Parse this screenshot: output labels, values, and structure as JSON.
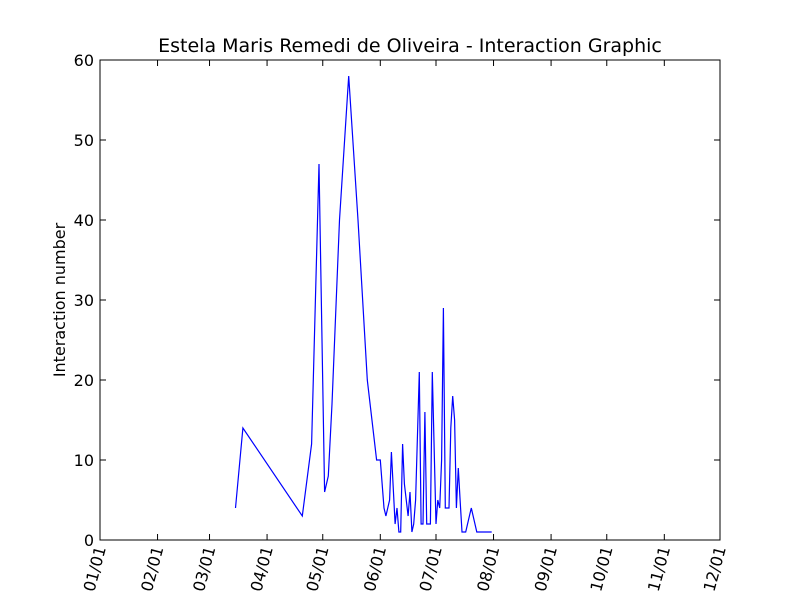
{
  "chart_data": {
    "type": "line",
    "title": "Estela Maris Remedi de Oliveira - Interaction Graphic",
    "xlabel": "",
    "ylabel": "Interaction number",
    "ylim": [
      0,
      60
    ],
    "xlim": [
      "2015-01-01",
      "2015-12-01"
    ],
    "y_ticks": [
      "0",
      "10",
      "20",
      "30",
      "40",
      "50",
      "60"
    ],
    "x_ticks": [
      {
        "label": "01/01",
        "date": "2015-01-01"
      },
      {
        "label": "02/01",
        "date": "2015-02-01"
      },
      {
        "label": "03/01",
        "date": "2015-03-01"
      },
      {
        "label": "04/01",
        "date": "2015-04-01"
      },
      {
        "label": "05/01",
        "date": "2015-05-01"
      },
      {
        "label": "06/01",
        "date": "2015-06-01"
      },
      {
        "label": "07/01",
        "date": "2015-07-01"
      },
      {
        "label": "08/01",
        "date": "2015-08-01"
      },
      {
        "label": "09/01",
        "date": "2015-09-01"
      },
      {
        "label": "10/01",
        "date": "2015-10-01"
      },
      {
        "label": "11/01",
        "date": "2015-11-01"
      },
      {
        "label": "12/01",
        "date": "2015-12-01"
      }
    ],
    "grid": false,
    "line_color": "#0000ff",
    "series": [
      {
        "x": [
          "2015-03-15",
          "2015-03-19",
          "2015-04-20",
          "2015-04-25",
          "2015-04-29",
          "2015-05-02",
          "2015-05-04",
          "2015-05-06",
          "2015-05-10",
          "2015-05-15",
          "2015-05-20",
          "2015-05-25",
          "2015-05-30",
          "2015-06-01",
          "2015-06-03",
          "2015-06-04",
          "2015-06-06",
          "2015-06-07",
          "2015-06-09",
          "2015-06-10",
          "2015-06-11",
          "2015-06-12",
          "2015-06-13",
          "2015-06-14",
          "2015-06-16",
          "2015-06-17",
          "2015-06-18",
          "2015-06-19",
          "2015-06-20",
          "2015-06-22",
          "2015-06-23",
          "2015-06-24",
          "2015-06-25",
          "2015-06-26",
          "2015-06-28",
          "2015-06-29",
          "2015-07-01",
          "2015-07-02",
          "2015-07-03",
          "2015-07-04",
          "2015-07-05",
          "2015-07-06",
          "2015-07-07",
          "2015-07-08",
          "2015-07-09",
          "2015-07-10",
          "2015-07-11",
          "2015-07-12",
          "2015-07-13",
          "2015-07-14",
          "2015-07-15",
          "2015-07-17",
          "2015-07-19",
          "2015-07-20",
          "2015-07-23",
          "2015-07-28",
          "2015-07-30",
          "2015-07-31"
        ],
        "values": [
          4,
          14,
          3,
          12,
          47,
          6,
          8,
          17,
          40,
          58,
          40,
          20,
          10,
          10,
          4,
          3,
          5,
          11,
          2,
          4,
          1,
          1,
          12,
          7,
          3,
          6,
          1,
          2,
          5,
          21,
          2,
          2,
          16,
          2,
          2,
          21,
          2,
          5,
          4,
          10,
          29,
          4,
          4,
          4,
          14,
          18,
          15,
          4,
          9,
          5,
          1,
          1,
          3,
          4,
          1,
          1,
          1,
          1
        ]
      }
    ]
  }
}
